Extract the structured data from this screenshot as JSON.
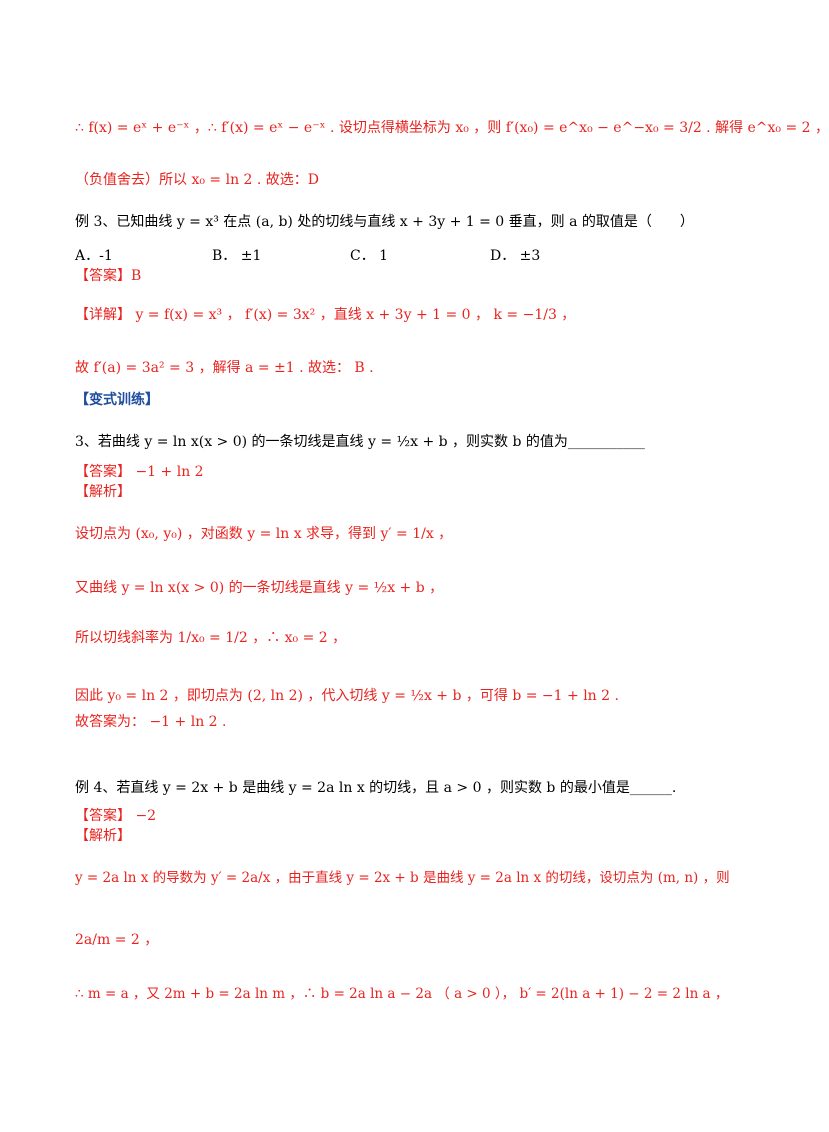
{
  "lines": {
    "l1": "∴ f(x) = eˣ + e⁻ˣ ，∴ f′(x) = eˣ − e⁻ˣ . 设切点得横坐标为 x₀ ，则 f′(x₀) = e^x₀ − e^−x₀ = 3/2 . 解得 e^x₀ = 2 ，",
    "l2": "（负值舍去）所以 x₀ = ln 2 . 故选：D",
    "l3": "例 3、已知曲线 y = x³ 在点 (a, b) 处的切线与直线 x + 3y + 1 = 0 垂直，则 a 的取值是（　　）",
    "l5_ans": "【答案】B",
    "l6": "【详解】 y = f(x) = x³ ， f′(x) = 3x² ，直线 x + 3y + 1 = 0 ， k = −1/3 ，",
    "l7": "故 f′(a) = 3a² = 3 ，解得 a = ±1 . 故选： B .",
    "l8": "【变式训练】",
    "l9": "3、若曲线 y = ln x(x > 0) 的一条切线是直线 y = ½x + b ，则实数 b 的值为___________",
    "l10": "【答案】 −1 + ln 2",
    "l11": "【解析】",
    "l12": "设切点为 (x₀, y₀) ，对函数 y = ln x 求导，得到 y′ = 1/x ，",
    "l13": "又曲线 y = ln x(x > 0) 的一条切线是直线 y = ½x + b ，",
    "l14": "所以切线斜率为 1/x₀ = 1/2 ，∴ x₀ = 2 ，",
    "l15": "因此 y₀ = ln 2 ，即切点为 (2, ln 2) ，代入切线 y = ½x + b ，可得 b = −1 + ln 2 .",
    "l16": "故答案为： −1 + ln 2 .",
    "l17": "例 4、若直线 y = 2x + b 是曲线 y = 2a ln x 的切线，且 a > 0 ，则实数 b 的最小值是______.",
    "l18": "【答案】 −2",
    "l19": "【解析】",
    "l20": "y = 2a ln x 的导数为 y′ = 2a/x ，由于直线 y = 2x + b 是曲线 y = 2a ln x 的切线，设切点为 (m, n) ，则",
    "l21": "2a/m = 2 ，",
    "l22": "∴ m = a ，又 2m + b = 2a ln m ，∴ b = 2a ln a − 2a （ a > 0 ）， b′ = 2(ln a + 1) − 2 = 2 ln a ，"
  },
  "options": {
    "A": "A．-1",
    "B": "B． ±1",
    "C": "C． 1",
    "D": "D． ±3"
  }
}
